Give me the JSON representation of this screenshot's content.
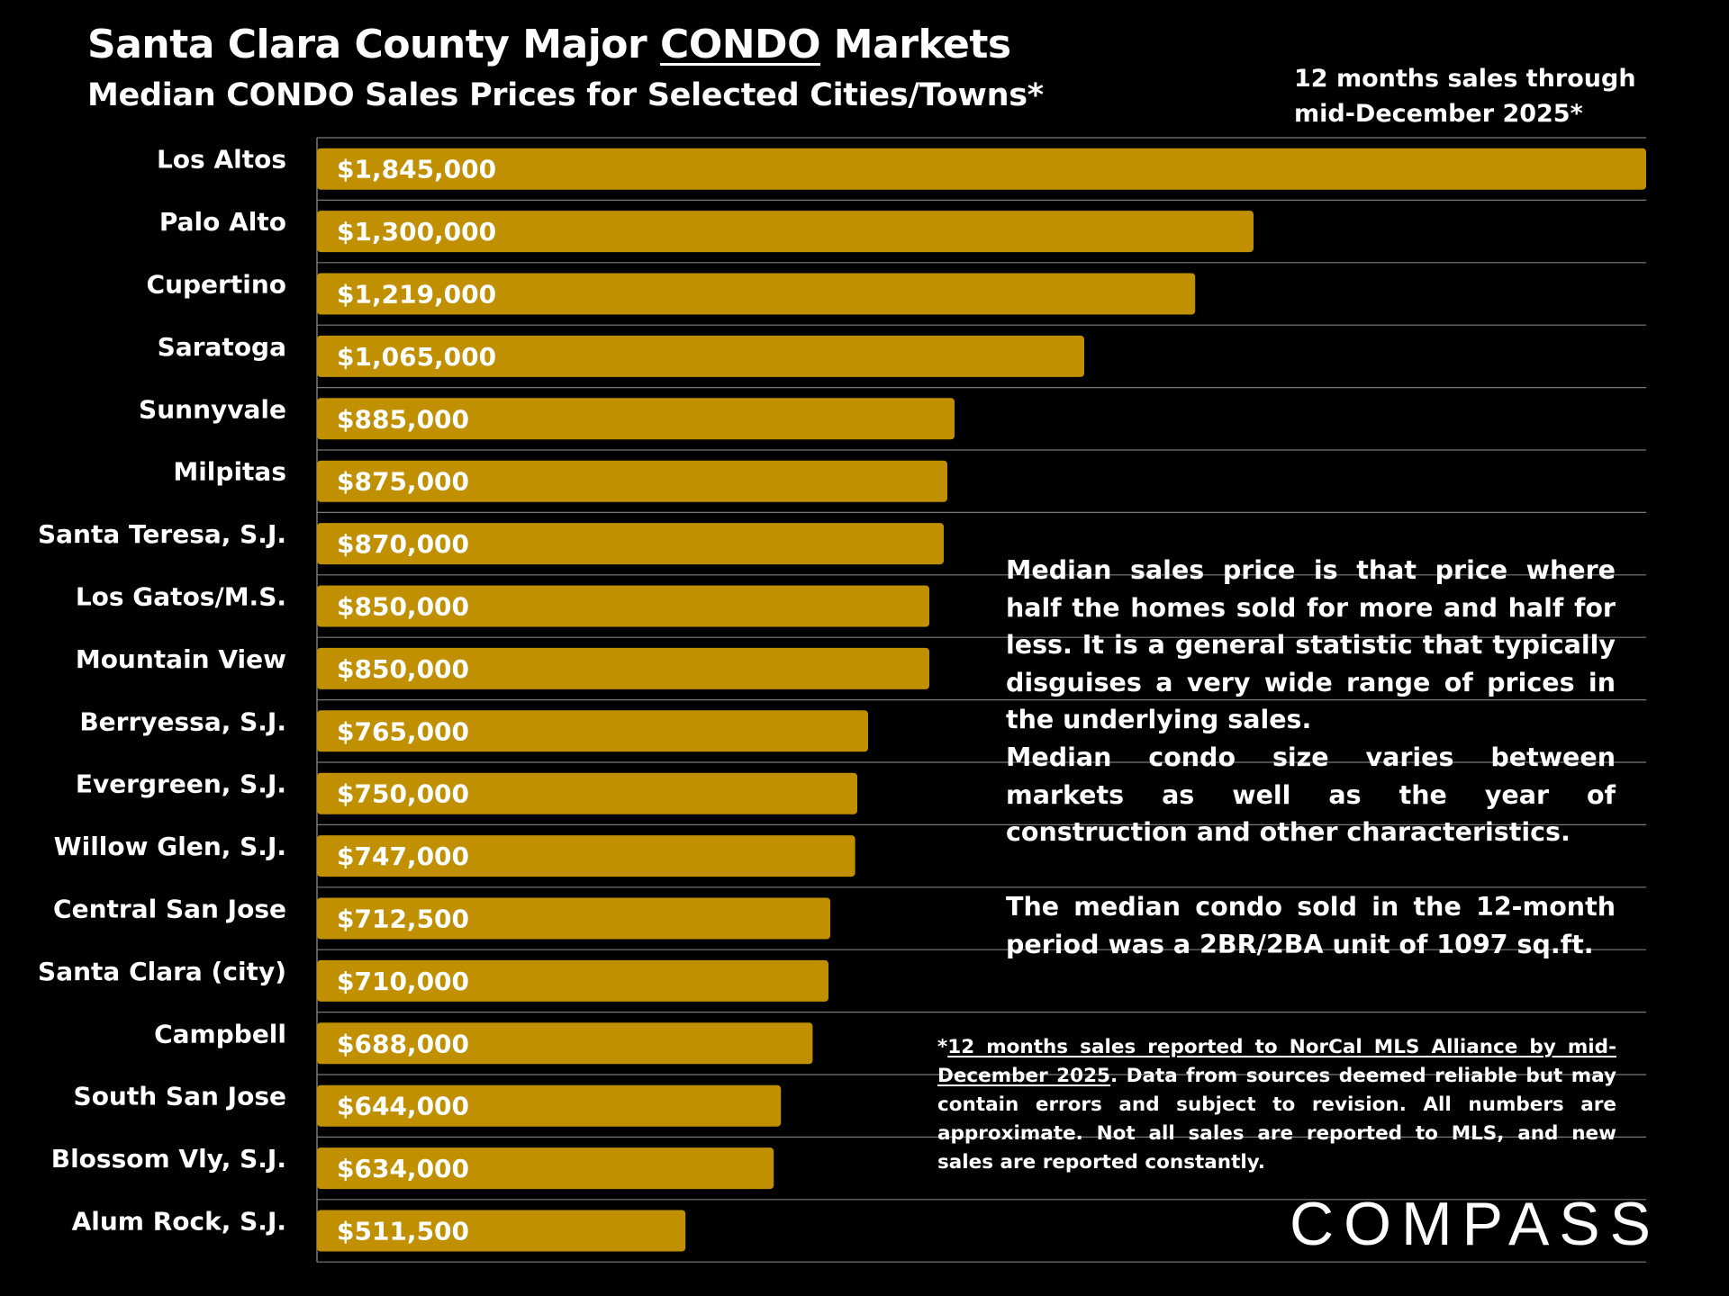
{
  "title": {
    "prefix": "Santa Clara County Major ",
    "emphasis": "CONDO",
    "suffix": " Markets"
  },
  "subtitle": "Median CONDO Sales Prices for Selected Cities/Towns*",
  "period": {
    "line1": "12 months sales through",
    "line2": "mid-December 2025*"
  },
  "notes": {
    "p1": "Median sales price is that price where half the homes sold for more and half for less. It is a general statistic that typically disguises a very wide range of prices in the underlying sales.",
    "p2": "Median condo size varies between markets as well as the year of construction and other characteristics.",
    "p3": "The median condo sold in the 12-month period was a 2BR/2BA unit of 1097 sq.ft."
  },
  "footnote": {
    "star": "*",
    "underlined": "12 months sales reported to NorCal MLS Alliance by mid-December 2025",
    "rest": ". Data from sources deemed reliable but may contain errors and subject to revision. All numbers are approximate. Not all sales are reported to MLS, and new sales are reported constantly."
  },
  "logo": {
    "text": "COMPASS"
  },
  "colors": {
    "bar": "#C09000",
    "background": "#000000",
    "text": "#FFFFFF",
    "grid": "#7A7A7A"
  },
  "chart_data": {
    "type": "bar",
    "orientation": "horizontal",
    "title": "Santa Clara County Major CONDO Markets",
    "subtitle": "Median CONDO Sales Prices for Selected Cities/Towns*",
    "xlabel": "",
    "ylabel": "",
    "xlim": [
      0,
      1845000
    ],
    "grid": true,
    "categories": [
      "Los Altos",
      "Palo Alto",
      "Cupertino",
      "Saratoga",
      "Sunnyvale",
      "Milpitas",
      "Santa Teresa, S.J.",
      "Los Gatos/M.S.",
      "Mountain View",
      "Berryessa, S.J.",
      "Evergreen, S.J.",
      "Willow Glen, S.J.",
      "Central San Jose",
      "Santa Clara (city)",
      "Campbell",
      "South San Jose",
      "Blossom Vly, S.J.",
      "Alum Rock, S.J."
    ],
    "values": [
      1845000,
      1300000,
      1219000,
      1065000,
      885000,
      875000,
      870000,
      850000,
      850000,
      765000,
      750000,
      747000,
      712500,
      710000,
      688000,
      644000,
      634000,
      511500
    ],
    "labels": [
      "$1,845,000",
      "$1,300,000",
      "$1,219,000",
      "$1,065,000",
      "$885,000",
      "$875,000",
      "$870,000",
      "$850,000",
      "$850,000",
      "$765,000",
      "$750,000",
      "$747,000",
      "$712,500",
      "$710,000",
      "$688,000",
      "$644,000",
      "$634,000",
      "$511,500"
    ]
  }
}
